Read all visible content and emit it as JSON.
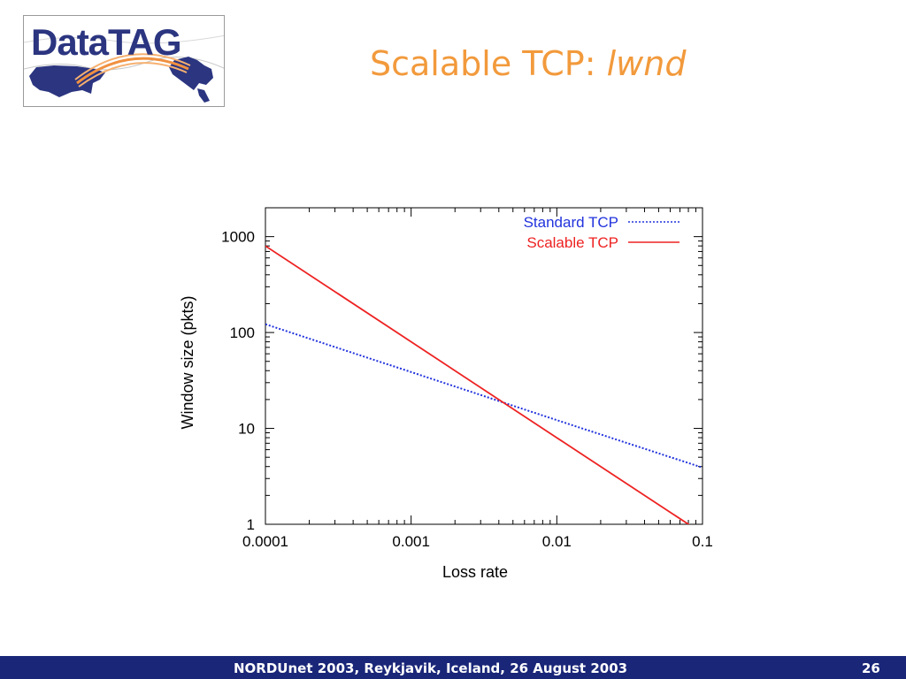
{
  "slide": {
    "title_main": "Scalable TCP: ",
    "title_italic": "lwnd",
    "logo_text": "DataTAG"
  },
  "footer": {
    "text": "NORDUnet 2003, Reykjavik, Iceland, 26 August 2003",
    "page": "26"
  },
  "colors": {
    "title": "#f29a3c",
    "footer_bg": "#1a2678",
    "standard_tcp": "#2233dd",
    "scalable_tcp": "#ee2222"
  },
  "chart_data": {
    "type": "line",
    "xscale": "log",
    "yscale": "log",
    "xlabel": "Loss rate",
    "ylabel": "Window size (pkts)",
    "xlim": [
      0.0001,
      0.1
    ],
    "ylim": [
      1,
      2000
    ],
    "xticks": [
      {
        "value": 0.0001,
        "label": "0.0001"
      },
      {
        "value": 0.001,
        "label": "0.001"
      },
      {
        "value": 0.01,
        "label": "0.01"
      },
      {
        "value": 0.1,
        "label": "0.1"
      }
    ],
    "yticks": [
      {
        "value": 1,
        "label": "1"
      },
      {
        "value": 10,
        "label": "10"
      },
      {
        "value": 100,
        "label": "100"
      },
      {
        "value": 1000,
        "label": "1000"
      }
    ],
    "legend_position": "top-right",
    "series": [
      {
        "name": "Standard TCP",
        "style": "dotted",
        "x": [
          0.0001,
          0.001,
          0.01,
          0.1
        ],
        "y": [
          122,
          38.7,
          12.2,
          3.9
        ]
      },
      {
        "name": "Scalable TCP",
        "style": "solid",
        "x": [
          0.0001,
          0.001,
          0.01,
          0.09
        ],
        "y": [
          800,
          80,
          8,
          0.89
        ]
      }
    ]
  }
}
